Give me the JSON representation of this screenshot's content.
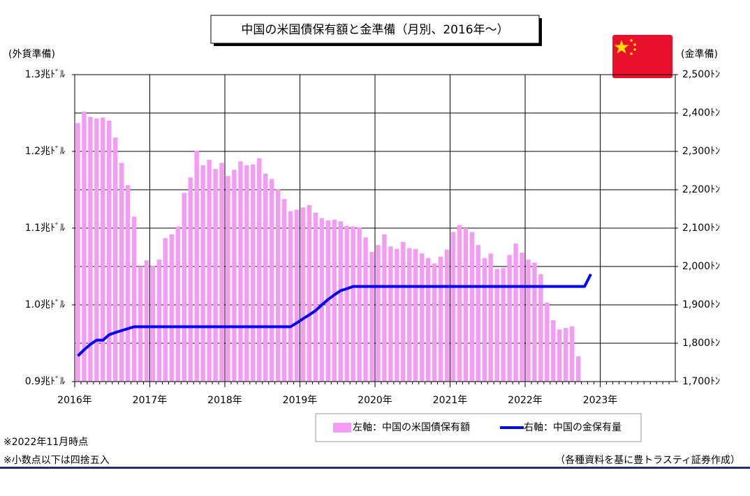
{
  "chart_data": {
    "type": "bar",
    "title": "中国の米国債保有額と金準備（月別、2016年～）",
    "y_label": "(外貨準備)",
    "y2_label": "(金準備)",
    "categories": [
      "2016年",
      null,
      null,
      null,
      null,
      null,
      null,
      null,
      null,
      null,
      null,
      null,
      "2017年",
      null,
      null,
      null,
      null,
      null,
      null,
      null,
      null,
      null,
      null,
      null,
      "2018年",
      null,
      null,
      null,
      null,
      null,
      null,
      null,
      null,
      null,
      null,
      null,
      "2019年",
      null,
      null,
      null,
      null,
      null,
      null,
      null,
      null,
      null,
      null,
      null,
      "2020年",
      null,
      null,
      null,
      null,
      null,
      null,
      null,
      null,
      null,
      null,
      null,
      "2021年",
      null,
      null,
      null,
      null,
      null,
      null,
      null,
      null,
      null,
      null,
      null,
      "2022年",
      null,
      null,
      null,
      null,
      null,
      null,
      null,
      null,
      null,
      null,
      null,
      "2023年",
      null,
      null,
      null,
      null,
      null,
      null,
      null,
      null,
      null,
      null,
      null
    ],
    "series": [
      {
        "name": "左軸：中国の米国債保有額",
        "color": "#f49cf4",
        "values": [
          1.237,
          1.252,
          1.245,
          1.243,
          1.244,
          1.24,
          1.218,
          1.185,
          1.156,
          1.115,
          1.05,
          1.058,
          1.051,
          1.059,
          1.087,
          1.092,
          1.102,
          1.146,
          1.166,
          1.201,
          1.182,
          1.189,
          1.177,
          1.185,
          1.168,
          1.176,
          1.187,
          1.182,
          1.183,
          1.191,
          1.171,
          1.164,
          1.151,
          1.138,
          1.122,
          1.124,
          1.127,
          1.13,
          1.12,
          1.113,
          1.11,
          1.111,
          1.109,
          1.103,
          1.102,
          1.101,
          1.088,
          1.069,
          1.078,
          1.092,
          1.076,
          1.073,
          1.082,
          1.074,
          1.073,
          1.067,
          1.061,
          1.054,
          1.063,
          1.072,
          1.095,
          1.104,
          1.1,
          1.095,
          1.078,
          1.061,
          1.067,
          1.047,
          1.048,
          1.065,
          1.08,
          1.068,
          1.059,
          1.055,
          1.04,
          1.003,
          0.98,
          0.968,
          0.97,
          0.972,
          0.933,
          null,
          null,
          null,
          null,
          null,
          null,
          null,
          null,
          null,
          null,
          null,
          null,
          null,
          null,
          null
        ]
      },
      {
        "name": "右軸：中国の金保有量",
        "color": "#0000ff",
        "axis": "y2",
        "values": [
          1767,
          1783,
          1797,
          1808,
          1808,
          1822,
          1828,
          1833,
          1838,
          1843,
          1843,
          1843,
          1843,
          1843,
          1843,
          1843,
          1843,
          1843,
          1843,
          1843,
          1843,
          1843,
          1843,
          1843,
          1843,
          1843,
          1843,
          1843,
          1843,
          1843,
          1843,
          1843,
          1843,
          1843,
          1843,
          1853,
          1864,
          1874,
          1885,
          1900,
          1914,
          1926,
          1937,
          1942,
          1948,
          1948,
          1948,
          1948,
          1948,
          1948,
          1948,
          1948,
          1948,
          1948,
          1948,
          1948,
          1948,
          1948,
          1948,
          1948,
          1948,
          1948,
          1948,
          1948,
          1948,
          1948,
          1948,
          1948,
          1948,
          1948,
          1948,
          1948,
          1948,
          1948,
          1948,
          1948,
          1948,
          1948,
          1948,
          1948,
          1948,
          1948,
          1980,
          null,
          null,
          null,
          null,
          null,
          null,
          null,
          null,
          null,
          null,
          null,
          null,
          null
        ]
      }
    ],
    "ylim": [
      0.9,
      1.3
    ],
    "yticks": [
      {
        "value": 0.9,
        "label": "0.9兆ﾄﾞﾙ"
      },
      {
        "value": 1.0,
        "label": "1.0兆ﾄﾞﾙ"
      },
      {
        "value": 1.1,
        "label": "1.1兆ﾄﾞﾙ"
      },
      {
        "value": 1.2,
        "label": "1.2兆ﾄﾞﾙ"
      },
      {
        "value": 1.3,
        "label": "1.3兆ﾄﾞﾙ"
      }
    ],
    "y2lim": [
      1700,
      2500
    ],
    "y2ticks": [
      {
        "value": 1700,
        "label": "1,700ﾄﾝ"
      },
      {
        "value": 1800,
        "label": "1,800ﾄﾝ"
      },
      {
        "value": 1900,
        "label": "1,900ﾄﾝ"
      },
      {
        "value": 2000,
        "label": "2,000ﾄﾝ"
      },
      {
        "value": 2100,
        "label": "2,100ﾄﾝ"
      },
      {
        "value": 2200,
        "label": "2,200ﾄﾝ"
      },
      {
        "value": 2300,
        "label": "2,300ﾄﾝ"
      },
      {
        "value": 2400,
        "label": "2,400ﾄﾝ"
      },
      {
        "value": 2500,
        "label": "2,500ﾄﾝ"
      }
    ],
    "grid": true,
    "notes": [
      "※2022年11月時点",
      "※小数点以下は四捨五入"
    ],
    "source": "（各種資料を基に豊トラスティ証券作成）"
  }
}
